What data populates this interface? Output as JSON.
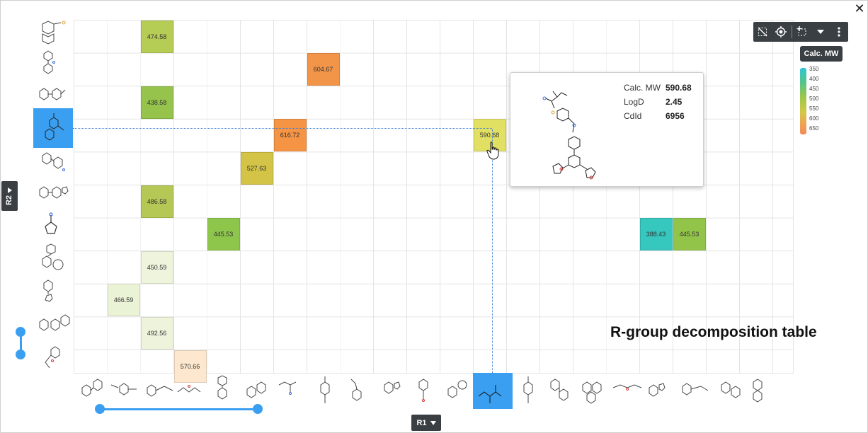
{
  "window": {
    "close_label": "✕"
  },
  "cells": [
    {
      "row": 0,
      "col": 2,
      "value": "474.58",
      "color": "#b5cc55"
    },
    {
      "row": 1,
      "col": 7,
      "value": "604.67",
      "color": "#f39549"
    },
    {
      "row": 2,
      "col": 2,
      "value": "438.58",
      "color": "#95c34c"
    },
    {
      "row": 3,
      "col": 6,
      "value": "616.72",
      "color": "#f59445"
    },
    {
      "row": 3,
      "col": 12,
      "value": "590.68",
      "color": "#e2e062"
    },
    {
      "row": 4,
      "col": 5,
      "value": "527.63",
      "color": "#d3c447"
    },
    {
      "row": 5,
      "col": 2,
      "value": "486.58",
      "color": "#b5c755"
    },
    {
      "row": 6,
      "col": 4,
      "value": "445.53",
      "color": "#8ec64b"
    },
    {
      "row": 6,
      "col": 17,
      "value": "388.43",
      "color": "#36c7be"
    },
    {
      "row": 6,
      "col": 18,
      "value": "445.53",
      "color": "#93c44a"
    },
    {
      "row": 7,
      "col": 2,
      "value": "450.59",
      "color": "#eef5dc"
    },
    {
      "row": 8,
      "col": 1,
      "value": "466.59",
      "color": "#eaf3d6"
    },
    {
      "row": 9,
      "col": 2,
      "value": "492.56",
      "color": "#eef3dc"
    },
    {
      "row": 10,
      "col": 3,
      "value": "570.66",
      "color": "#fde8cf"
    }
  ],
  "toolbar": {
    "icons": [
      "clear-selection-icon",
      "target-icon",
      "select-region-icon",
      "caret-down-icon",
      "more-vert-icon"
    ],
    "tooltip": "Calc. MW"
  },
  "legend": {
    "labels": [
      "350",
      "400",
      "450",
      "500",
      "550",
      "600",
      "650"
    ],
    "colors": {
      "low": "#2fc7d4",
      "high": "#f08a5a"
    }
  },
  "popup": {
    "rows": [
      {
        "label": "Calc. MW",
        "value": "590.68"
      },
      {
        "label": "LogD",
        "value": "2.45"
      },
      {
        "label": "CdId",
        "value": "6956"
      }
    ]
  },
  "caption": "R-group decomposition table",
  "axes": {
    "y_tag": "R2",
    "x_tag": "R1",
    "highlight_color": "#3a9ff0"
  }
}
